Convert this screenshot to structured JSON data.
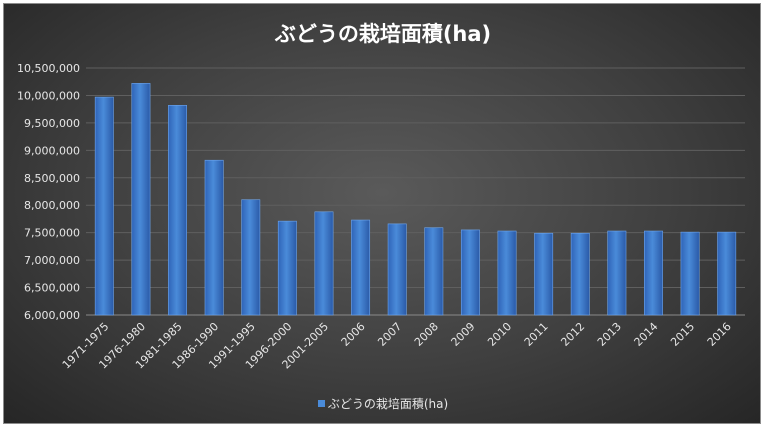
{
  "chart_data": {
    "type": "bar",
    "title": "ぶどうの栽培面積(ha)",
    "categories": [
      "1971-1975",
      "1976-1980",
      "1981-1985",
      "1986-1990",
      "1991-1995",
      "1996-2000",
      "2001-2005",
      "2006",
      "2007",
      "2008",
      "2009",
      "2010",
      "2011",
      "2012",
      "2013",
      "2014",
      "2015",
      "2016"
    ],
    "series": [
      {
        "name": "ぶどうの栽培面積(ha)",
        "values": [
          9970000,
          10220000,
          9820000,
          8820000,
          8100000,
          7710000,
          7880000,
          7730000,
          7660000,
          7590000,
          7550000,
          7530000,
          7490000,
          7490000,
          7530000,
          7530000,
          7510000,
          7510000
        ]
      }
    ],
    "ylim": [
      6000000,
      10500000
    ],
    "yticks": [
      "6,000,000",
      "6,500,000",
      "7,000,000",
      "7,500,000",
      "8,000,000",
      "8,500,000",
      "9,000,000",
      "9,500,000",
      "10,000,000",
      "10,500,000"
    ],
    "grid": true,
    "legend_position": "bottom",
    "bar_color": "#4a8bd9",
    "background_color": "#3f3f3f"
  }
}
